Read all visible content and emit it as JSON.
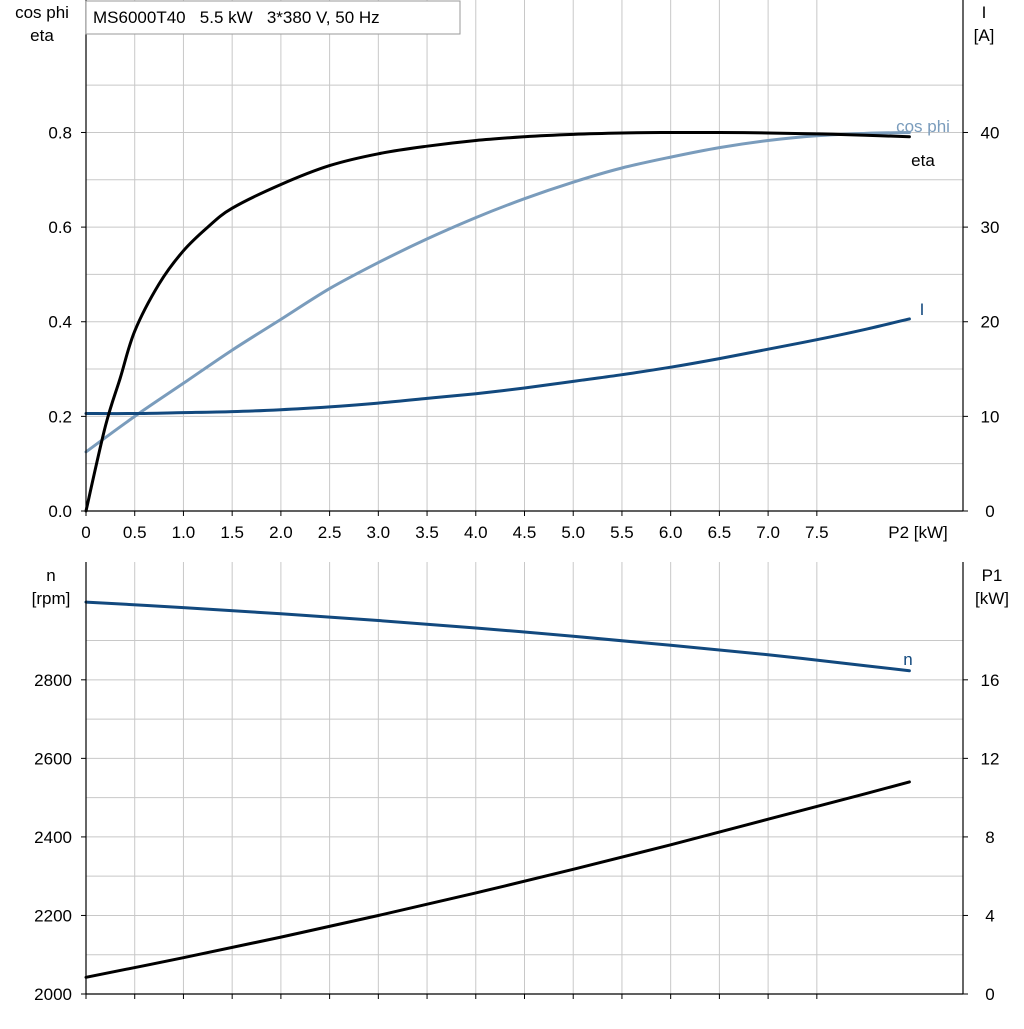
{
  "title": "MS6000T40   5.5 kW   3*380 V, 50 Hz",
  "colors": {
    "eta": "#000000",
    "cos_phi": "#7a9cbc",
    "I": "#12497e",
    "n": "#12497e",
    "P1": "#000000",
    "grid": "#c8c8c8"
  },
  "chart_data": [
    {
      "type": "line",
      "panel": "top",
      "xlabel": "P2 [kW]",
      "x_tick_labels": [
        "0",
        "0.5",
        "1.0",
        "1.5",
        "2.0",
        "2.5",
        "3.0",
        "3.5",
        "4.0",
        "4.5",
        "5.0",
        "5.5",
        "6.0",
        "6.5",
        "7.0",
        "7.5"
      ],
      "x_ticks": [
        0,
        0.5,
        1.0,
        1.5,
        2.0,
        2.5,
        3.0,
        3.5,
        4.0,
        4.5,
        5.0,
        5.5,
        6.0,
        6.5,
        7.0,
        7.5
      ],
      "xlim": [
        0,
        9.0
      ],
      "y_left": {
        "label_lines": [
          "cos phi",
          "eta"
        ],
        "tick_labels": [
          "0.0",
          "0.2",
          "0.4",
          "0.6",
          "0.8"
        ],
        "ticks": [
          0,
          0.2,
          0.4,
          0.6,
          0.8
        ],
        "ylim": [
          0,
          1.08
        ]
      },
      "y_right": {
        "label_lines": [
          "I",
          "[A]"
        ],
        "tick_labels": [
          "0",
          "10",
          "20",
          "30",
          "40"
        ],
        "ticks": [
          0,
          10,
          20,
          30,
          40
        ],
        "ylim": [
          0,
          54
        ]
      },
      "series": [
        {
          "name": "eta",
          "axis": "left",
          "x": [
            0,
            0.2,
            0.35,
            0.5,
            0.75,
            1.0,
            1.25,
            1.5,
            2.0,
            2.5,
            3.0,
            3.5,
            4.0,
            4.5,
            5.0,
            5.5,
            6.0,
            6.5,
            7.0,
            7.5,
            8.0,
            8.45
          ],
          "y": [
            0,
            0.18,
            0.28,
            0.38,
            0.48,
            0.55,
            0.6,
            0.64,
            0.69,
            0.73,
            0.755,
            0.771,
            0.783,
            0.791,
            0.796,
            0.799,
            0.8,
            0.8,
            0.799,
            0.797,
            0.794,
            0.791
          ]
        },
        {
          "name": "cos phi",
          "axis": "left",
          "x": [
            0,
            0.5,
            1.0,
            1.5,
            2.0,
            2.5,
            3.0,
            3.5,
            4.0,
            4.5,
            5.0,
            5.5,
            6.0,
            6.5,
            7.0,
            7.5,
            8.0,
            8.45
          ],
          "y": [
            0.125,
            0.2,
            0.27,
            0.34,
            0.405,
            0.47,
            0.525,
            0.575,
            0.62,
            0.66,
            0.695,
            0.725,
            0.748,
            0.768,
            0.783,
            0.793,
            0.798,
            0.8
          ]
        },
        {
          "name": "I",
          "axis": "right",
          "x": [
            0,
            0.5,
            1.0,
            1.5,
            2.0,
            2.5,
            3.0,
            3.5,
            4.0,
            4.5,
            5.0,
            5.5,
            6.0,
            6.5,
            7.0,
            7.5,
            8.0,
            8.45
          ],
          "y": [
            10.3,
            10.3,
            10.4,
            10.5,
            10.7,
            11.0,
            11.4,
            11.9,
            12.4,
            13.0,
            13.7,
            14.4,
            15.2,
            16.1,
            17.1,
            18.1,
            19.2,
            20.3
          ]
        }
      ]
    },
    {
      "type": "line",
      "panel": "bottom",
      "xlim": [
        0,
        9.0
      ],
      "x_ticks": [
        0,
        0.5,
        1.0,
        1.5,
        2.0,
        2.5,
        3.0,
        3.5,
        4.0,
        4.5,
        5.0,
        5.5,
        6.0,
        6.5,
        7.0,
        7.5
      ],
      "y_left": {
        "label_lines": [
          "n",
          "[rpm]"
        ],
        "tick_labels": [
          "2000",
          "2200",
          "2400",
          "2600",
          "2800"
        ],
        "ticks": [
          2000,
          2200,
          2400,
          2600,
          2800
        ],
        "ylim": [
          2000,
          3100
        ]
      },
      "y_right": {
        "label_lines": [
          "P1",
          "[kW]"
        ],
        "tick_labels": [
          "0",
          "4",
          "8",
          "12",
          "16"
        ],
        "ticks": [
          0,
          4,
          8,
          12,
          16
        ],
        "ylim": [
          0,
          22
        ]
      },
      "series": [
        {
          "name": "n",
          "axis": "left",
          "x": [
            0,
            1.0,
            2.0,
            3.0,
            4.0,
            5.0,
            6.0,
            7.0,
            8.0,
            8.45
          ],
          "y": [
            2998,
            2984,
            2968,
            2951,
            2932,
            2911,
            2888,
            2864,
            2836,
            2823
          ]
        },
        {
          "name": "P1",
          "axis": "right",
          "x": [
            0,
            1.0,
            2.0,
            3.0,
            4.0,
            5.0,
            6.0,
            7.0,
            8.0,
            8.45
          ],
          "y": [
            0.85,
            1.85,
            2.9,
            4.0,
            5.15,
            6.35,
            7.6,
            8.9,
            10.2,
            10.8
          ]
        }
      ]
    }
  ]
}
